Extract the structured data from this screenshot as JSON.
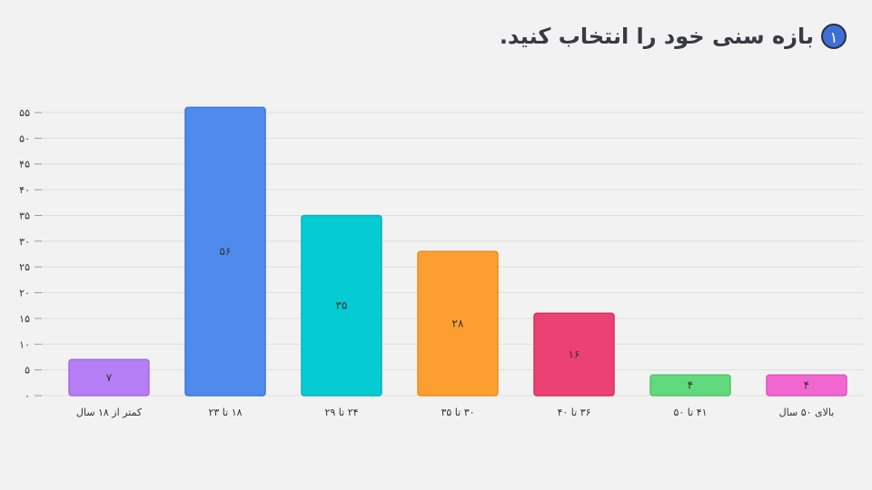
{
  "question": {
    "number": "۱",
    "text": "بازه سنی خود را انتخاب کنید."
  },
  "colors": {
    "grid": "#dedede",
    "axis_text": "#333333",
    "label_text": "#333333"
  },
  "chart_data": {
    "type": "bar",
    "categories": [
      "کمتر از ۱۸ سال",
      "۱۸ تا ۲۳",
      "۲۴ تا ۲۹",
      "۳۰ تا ۳۵",
      "۳۶ تا ۴۰",
      "۴۱ تا ۵۰",
      "بالای ۵۰ سال"
    ],
    "values": [
      7,
      56,
      35,
      28,
      16,
      4,
      4
    ],
    "value_labels": [
      "۷",
      "۵۶",
      "۳۵",
      "۲۸",
      "۱۶",
      "۴",
      "۴"
    ],
    "bar_colors": [
      "#b57ef5",
      "#4f8bec",
      "#05ccd3",
      "#ff9e30",
      "#ec4174",
      "#62d97c",
      "#f167cf"
    ],
    "bar_edge_colors": [
      "#a26be3",
      "#3f78d6",
      "#04b3b9",
      "#ea8c1f",
      "#d3325f",
      "#50c46a",
      "#de55bc"
    ],
    "ylim": [
      0,
      55
    ],
    "yticks": [
      0,
      5,
      10,
      15,
      20,
      25,
      30,
      35,
      40,
      45,
      50,
      55
    ],
    "ytick_labels": [
      "۰",
      "۵",
      "۱۰",
      "۱۵",
      "۲۰",
      "۲۵",
      "۳۰",
      "۳۵",
      "۴۰",
      "۴۵",
      "۵۰",
      "۵۵"
    ],
    "grid": true
  }
}
